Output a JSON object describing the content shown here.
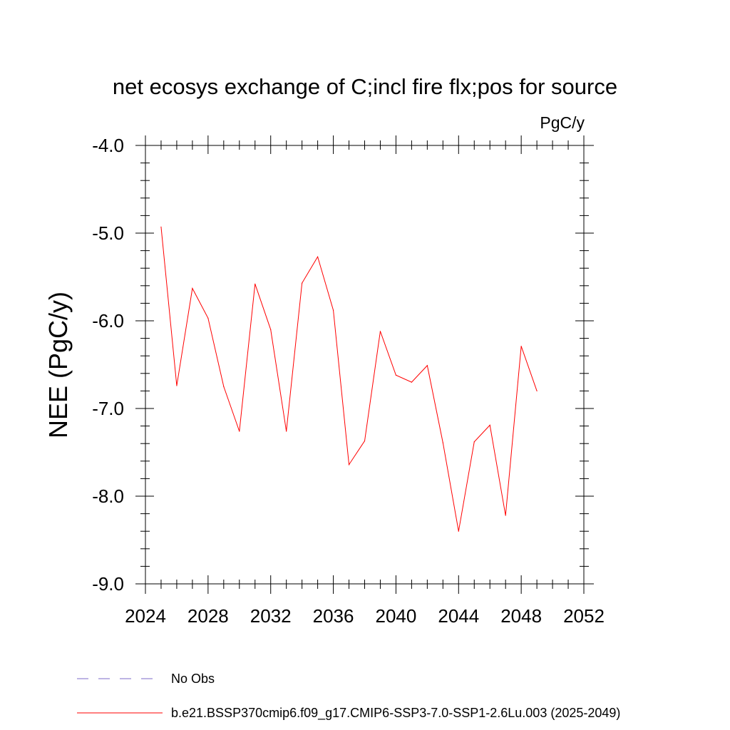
{
  "chart_data": {
    "type": "line",
    "title": "net ecosys exchange of C;incl fire flx;pos for source",
    "units": "PgC/y",
    "xlabel": "",
    "ylabel": "NEE  (PgC/y)",
    "xlim": [
      2024,
      2052
    ],
    "ylim": [
      -9.0,
      -4.0
    ],
    "x_ticks": [
      "2024",
      "2028",
      "2032",
      "2036",
      "2040",
      "2044",
      "2048",
      "2052"
    ],
    "y_ticks": [
      "-4.0",
      "-5.0",
      "-6.0",
      "-7.0",
      "-8.0",
      "-9.0"
    ],
    "series": [
      {
        "name": "b.e21.BSSP370cmip6.f09_g17.CMIP6-SSP3-7.0-SSP1-2.6Lu.003 (2025-2049)",
        "color": "#ff0000",
        "x": [
          2025,
          2026,
          2027,
          2028,
          2029,
          2030,
          2031,
          2032,
          2033,
          2034,
          2035,
          2036,
          2037,
          2038,
          2039,
          2040,
          2041,
          2042,
          2043,
          2044,
          2045,
          2046,
          2047,
          2048,
          2049
        ],
        "y": [
          -4.93,
          -6.74,
          -5.63,
          -5.97,
          -6.75,
          -7.26,
          -5.58,
          -6.1,
          -7.26,
          -5.57,
          -5.27,
          -5.88,
          -7.64,
          -7.37,
          -6.12,
          -6.62,
          -6.7,
          -6.51,
          -7.39,
          -8.4,
          -7.38,
          -7.19,
          -8.22,
          -6.29,
          -6.8
        ]
      }
    ],
    "legend": [
      {
        "label": "No Obs",
        "style": "dashed",
        "color": "#7b68c8"
      },
      {
        "label": "b.e21.BSSP370cmip6.f09_g17.CMIP6-SSP3-7.0-SSP1-2.6Lu.003 (2025-2049)",
        "style": "solid",
        "color": "#ff0000"
      }
    ],
    "legend_position": "bottom-left"
  }
}
